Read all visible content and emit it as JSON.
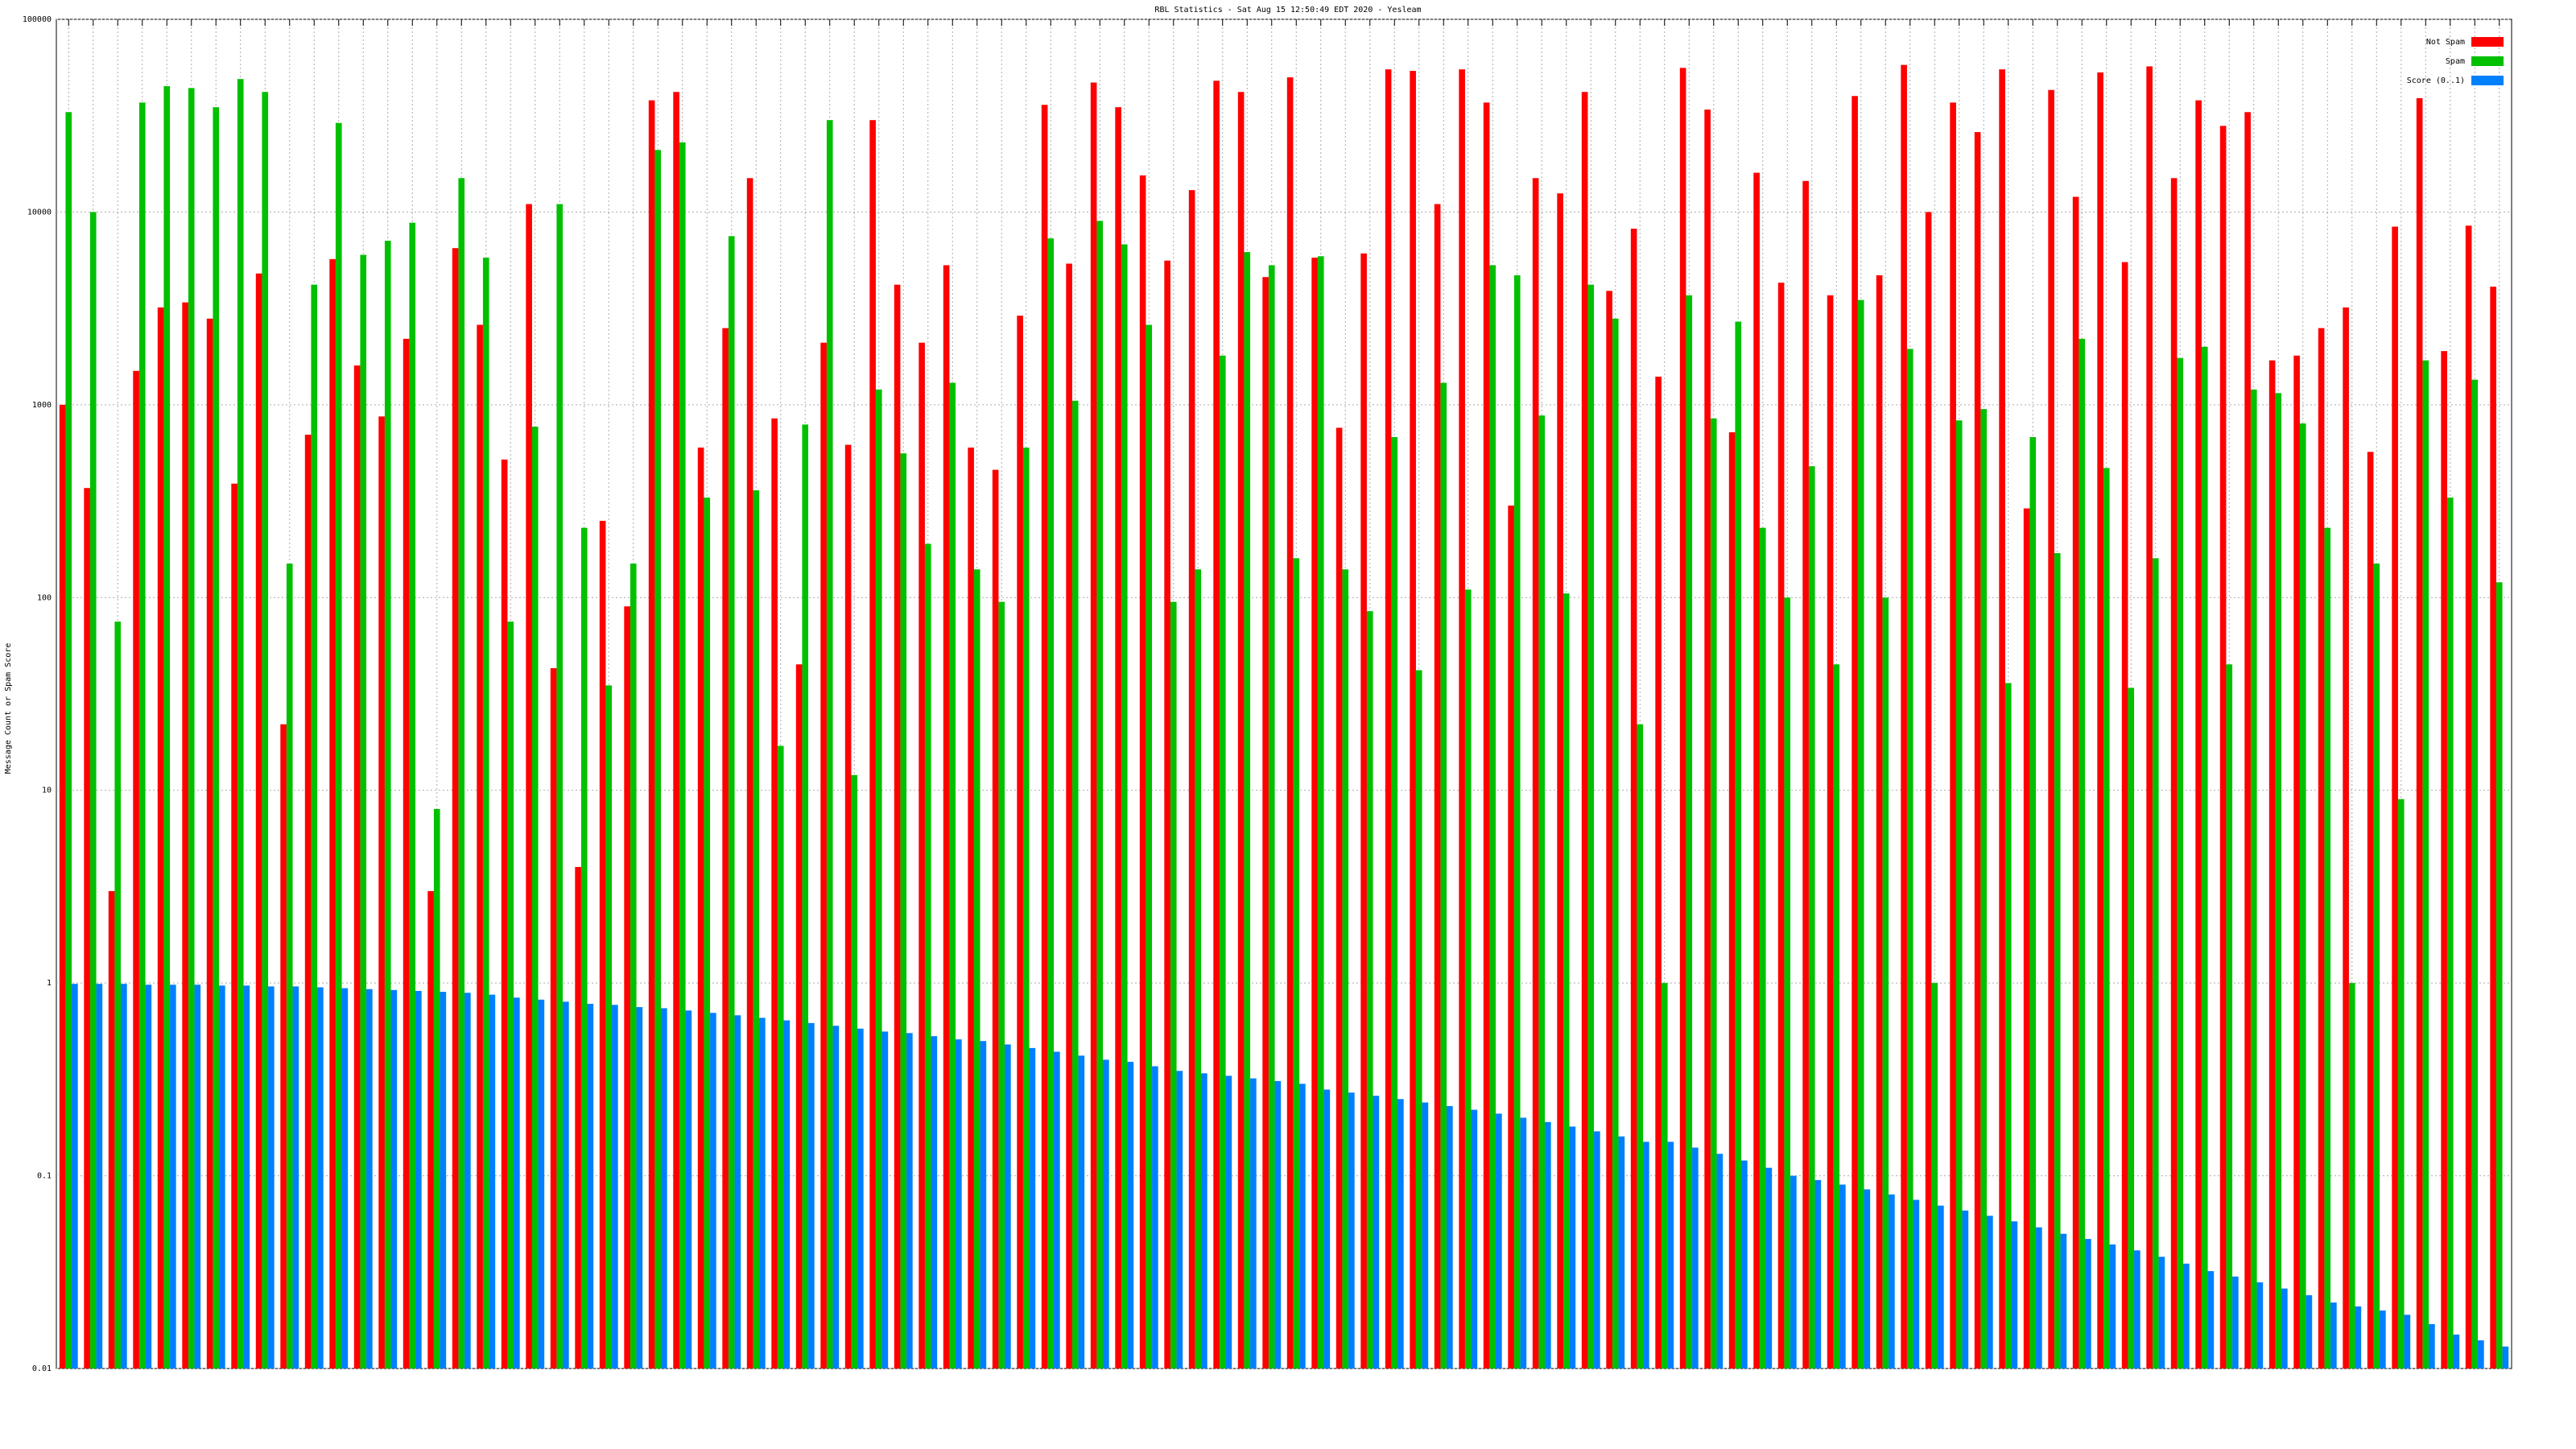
{
  "chart_data": {
    "type": "bar",
    "title": "RBL Statistics - Sat Aug 15 12:50:49 EDT 2020 - Yesleam",
    "y_label": "Message Count or Spam Score",
    "log_scale": true,
    "grid": true,
    "legend": "upper-right",
    "ylim": [
      0.01,
      100000
    ],
    "yticks": [
      0.01,
      0.1,
      1,
      10,
      100,
      1000,
      10000,
      100000
    ],
    "categories": [
      null,
      null,
      null,
      null,
      null,
      null,
      null,
      null,
      null,
      null,
      null,
      null,
      null,
      null,
      null,
      null,
      null,
      null,
      null,
      null,
      null,
      null,
      null,
      null,
      null,
      null,
      null,
      null,
      null,
      null,
      null,
      null,
      null,
      null,
      null,
      null,
      null,
      null,
      null,
      null,
      null,
      null,
      null,
      null,
      null,
      null,
      null,
      null,
      null,
      null,
      null,
      null,
      null,
      null,
      null,
      null,
      null,
      null,
      null,
      null,
      null,
      null,
      null,
      null,
      null,
      null,
      null,
      null,
      null,
      null,
      null,
      null,
      null,
      null,
      null,
      null,
      null,
      null,
      null,
      null,
      null,
      null,
      null,
      null,
      null,
      null,
      null,
      null,
      null,
      null,
      null,
      null,
      null,
      null,
      null,
      null,
      null,
      null,
      null,
      null
    ],
    "series": [
      {
        "name": "Not Spam",
        "color": "#ff0000",
        "values": [
          1000,
          370,
          3,
          1500,
          3200,
          3400,
          2800,
          390,
          4800,
          22,
          700,
          5700,
          1600,
          870,
          2200,
          3,
          6500,
          2600,
          520,
          11000,
          43,
          4,
          250,
          90,
          38000,
          42000,
          600,
          2500,
          15000,
          850,
          45,
          2100,
          620,
          30000,
          4200,
          2100,
          5300,
          600,
          460,
          2900,
          36000,
          5400,
          47000,
          35000,
          15500,
          5600,
          13000,
          48000,
          42000,
          4600,
          50000,
          5800,
          760,
          6100,
          55000,
          54000,
          11000,
          55000,
          37000,
          300,
          15000,
          12500,
          42000,
          3900,
          8200,
          1400,
          56000,
          34000,
          720,
          16000,
          4300,
          14500,
          3700,
          40000,
          4700,
          58000,
          10000,
          37000,
          26000,
          55000,
          290,
          43000,
          12000,
          53000,
          5500,
          57000,
          15000,
          38000,
          28000,
          33000,
          1700,
          1800,
          2500,
          3200,
          570,
          8400,
          39000,
          1900,
          8500,
          4100
        ]
      },
      {
        "name": "Spam",
        "color": "#00c000",
        "values": [
          33000,
          10000,
          75,
          37000,
          45000,
          44000,
          35000,
          49000,
          42000,
          150,
          4200,
          29000,
          6000,
          7100,
          8800,
          8,
          15000,
          5800,
          75,
          770,
          11000,
          230,
          35,
          150,
          21000,
          23000,
          330,
          7500,
          360,
          17,
          790,
          30000,
          12,
          1200,
          560,
          190,
          1300,
          140,
          95,
          600,
          7300,
          1050,
          9000,
          6800,
          2600,
          95,
          140,
          1800,
          6200,
          5300,
          160,
          5900,
          140,
          85,
          680,
          42,
          1300,
          110,
          5300,
          4700,
          880,
          105,
          4200,
          2800,
          22,
          1,
          3700,
          850,
          2700,
          230,
          100,
          480,
          45,
          3500,
          100,
          1950,
          1,
          830,
          950,
          36,
          680,
          170,
          2200,
          470,
          34,
          160,
          1750,
          2000,
          45,
          1200,
          1150,
          800,
          230,
          1,
          150,
          9,
          1700,
          330,
          1350,
          120
        ]
      },
      {
        "name": "Score (0..1)",
        "color": "#0080ff",
        "values": [
          0.99,
          0.99,
          0.99,
          0.98,
          0.98,
          0.98,
          0.97,
          0.97,
          0.96,
          0.96,
          0.95,
          0.94,
          0.93,
          0.92,
          0.91,
          0.9,
          0.89,
          0.87,
          0.84,
          0.82,
          0.8,
          0.78,
          0.77,
          0.75,
          0.74,
          0.72,
          0.7,
          0.68,
          0.66,
          0.64,
          0.62,
          0.6,
          0.58,
          0.56,
          0.55,
          0.53,
          0.51,
          0.5,
          0.48,
          0.46,
          0.44,
          0.42,
          0.4,
          0.39,
          0.37,
          0.35,
          0.34,
          0.33,
          0.32,
          0.31,
          0.3,
          0.28,
          0.27,
          0.26,
          0.25,
          0.24,
          0.23,
          0.22,
          0.21,
          0.2,
          0.19,
          0.18,
          0.17,
          0.16,
          0.15,
          0.15,
          0.14,
          0.13,
          0.12,
          0.11,
          0.1,
          0.095,
          0.09,
          0.085,
          0.08,
          0.075,
          0.07,
          0.066,
          0.062,
          0.058,
          0.054,
          0.05,
          0.047,
          0.044,
          0.041,
          0.038,
          0.035,
          0.032,
          0.03,
          0.028,
          0.026,
          0.024,
          0.022,
          0.021,
          0.02,
          0.019,
          0.017,
          0.015,
          0.014,
          0.013
        ]
      }
    ]
  }
}
